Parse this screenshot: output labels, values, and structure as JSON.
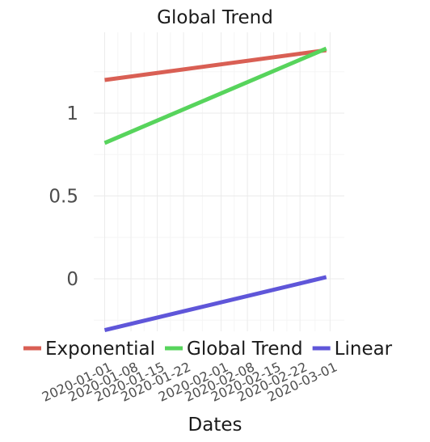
{
  "chart_data": {
    "type": "line",
    "title": "Global Trend",
    "xlabel": "Dates",
    "ylabel": "",
    "x_ticks": [
      "2020-01-01",
      "2020-01-08",
      "2020-01-15",
      "2020-01-22",
      "2020-02-01",
      "2020-02-08",
      "2020-02-15",
      "2020-02-22",
      "2020-03-01"
    ],
    "y_ticks": [
      {
        "value": 0,
        "label": "0"
      },
      {
        "value": 0.5,
        "label": "0.5"
      },
      {
        "value": 1,
        "label": "1"
      }
    ],
    "xlim": [
      "2020-01-01",
      "2020-03-02"
    ],
    "ylim": [
      -0.31,
      1.47
    ],
    "grid": true,
    "legend_position": "bottom",
    "series": [
      {
        "name": "Exponential",
        "color": "#d95f54",
        "x": [
          "2020-01-01",
          "2020-02-29"
        ],
        "values": [
          1.2,
          1.38
        ]
      },
      {
        "name": "Global Trend",
        "color": "#57d45c",
        "x": [
          "2020-01-01",
          "2020-02-29"
        ],
        "values": [
          0.82,
          1.39
        ]
      },
      {
        "name": "Linear",
        "color": "#5f56d9",
        "x": [
          "2020-01-01",
          "2020-02-29"
        ],
        "values": [
          -0.31,
          0.01
        ]
      }
    ]
  }
}
